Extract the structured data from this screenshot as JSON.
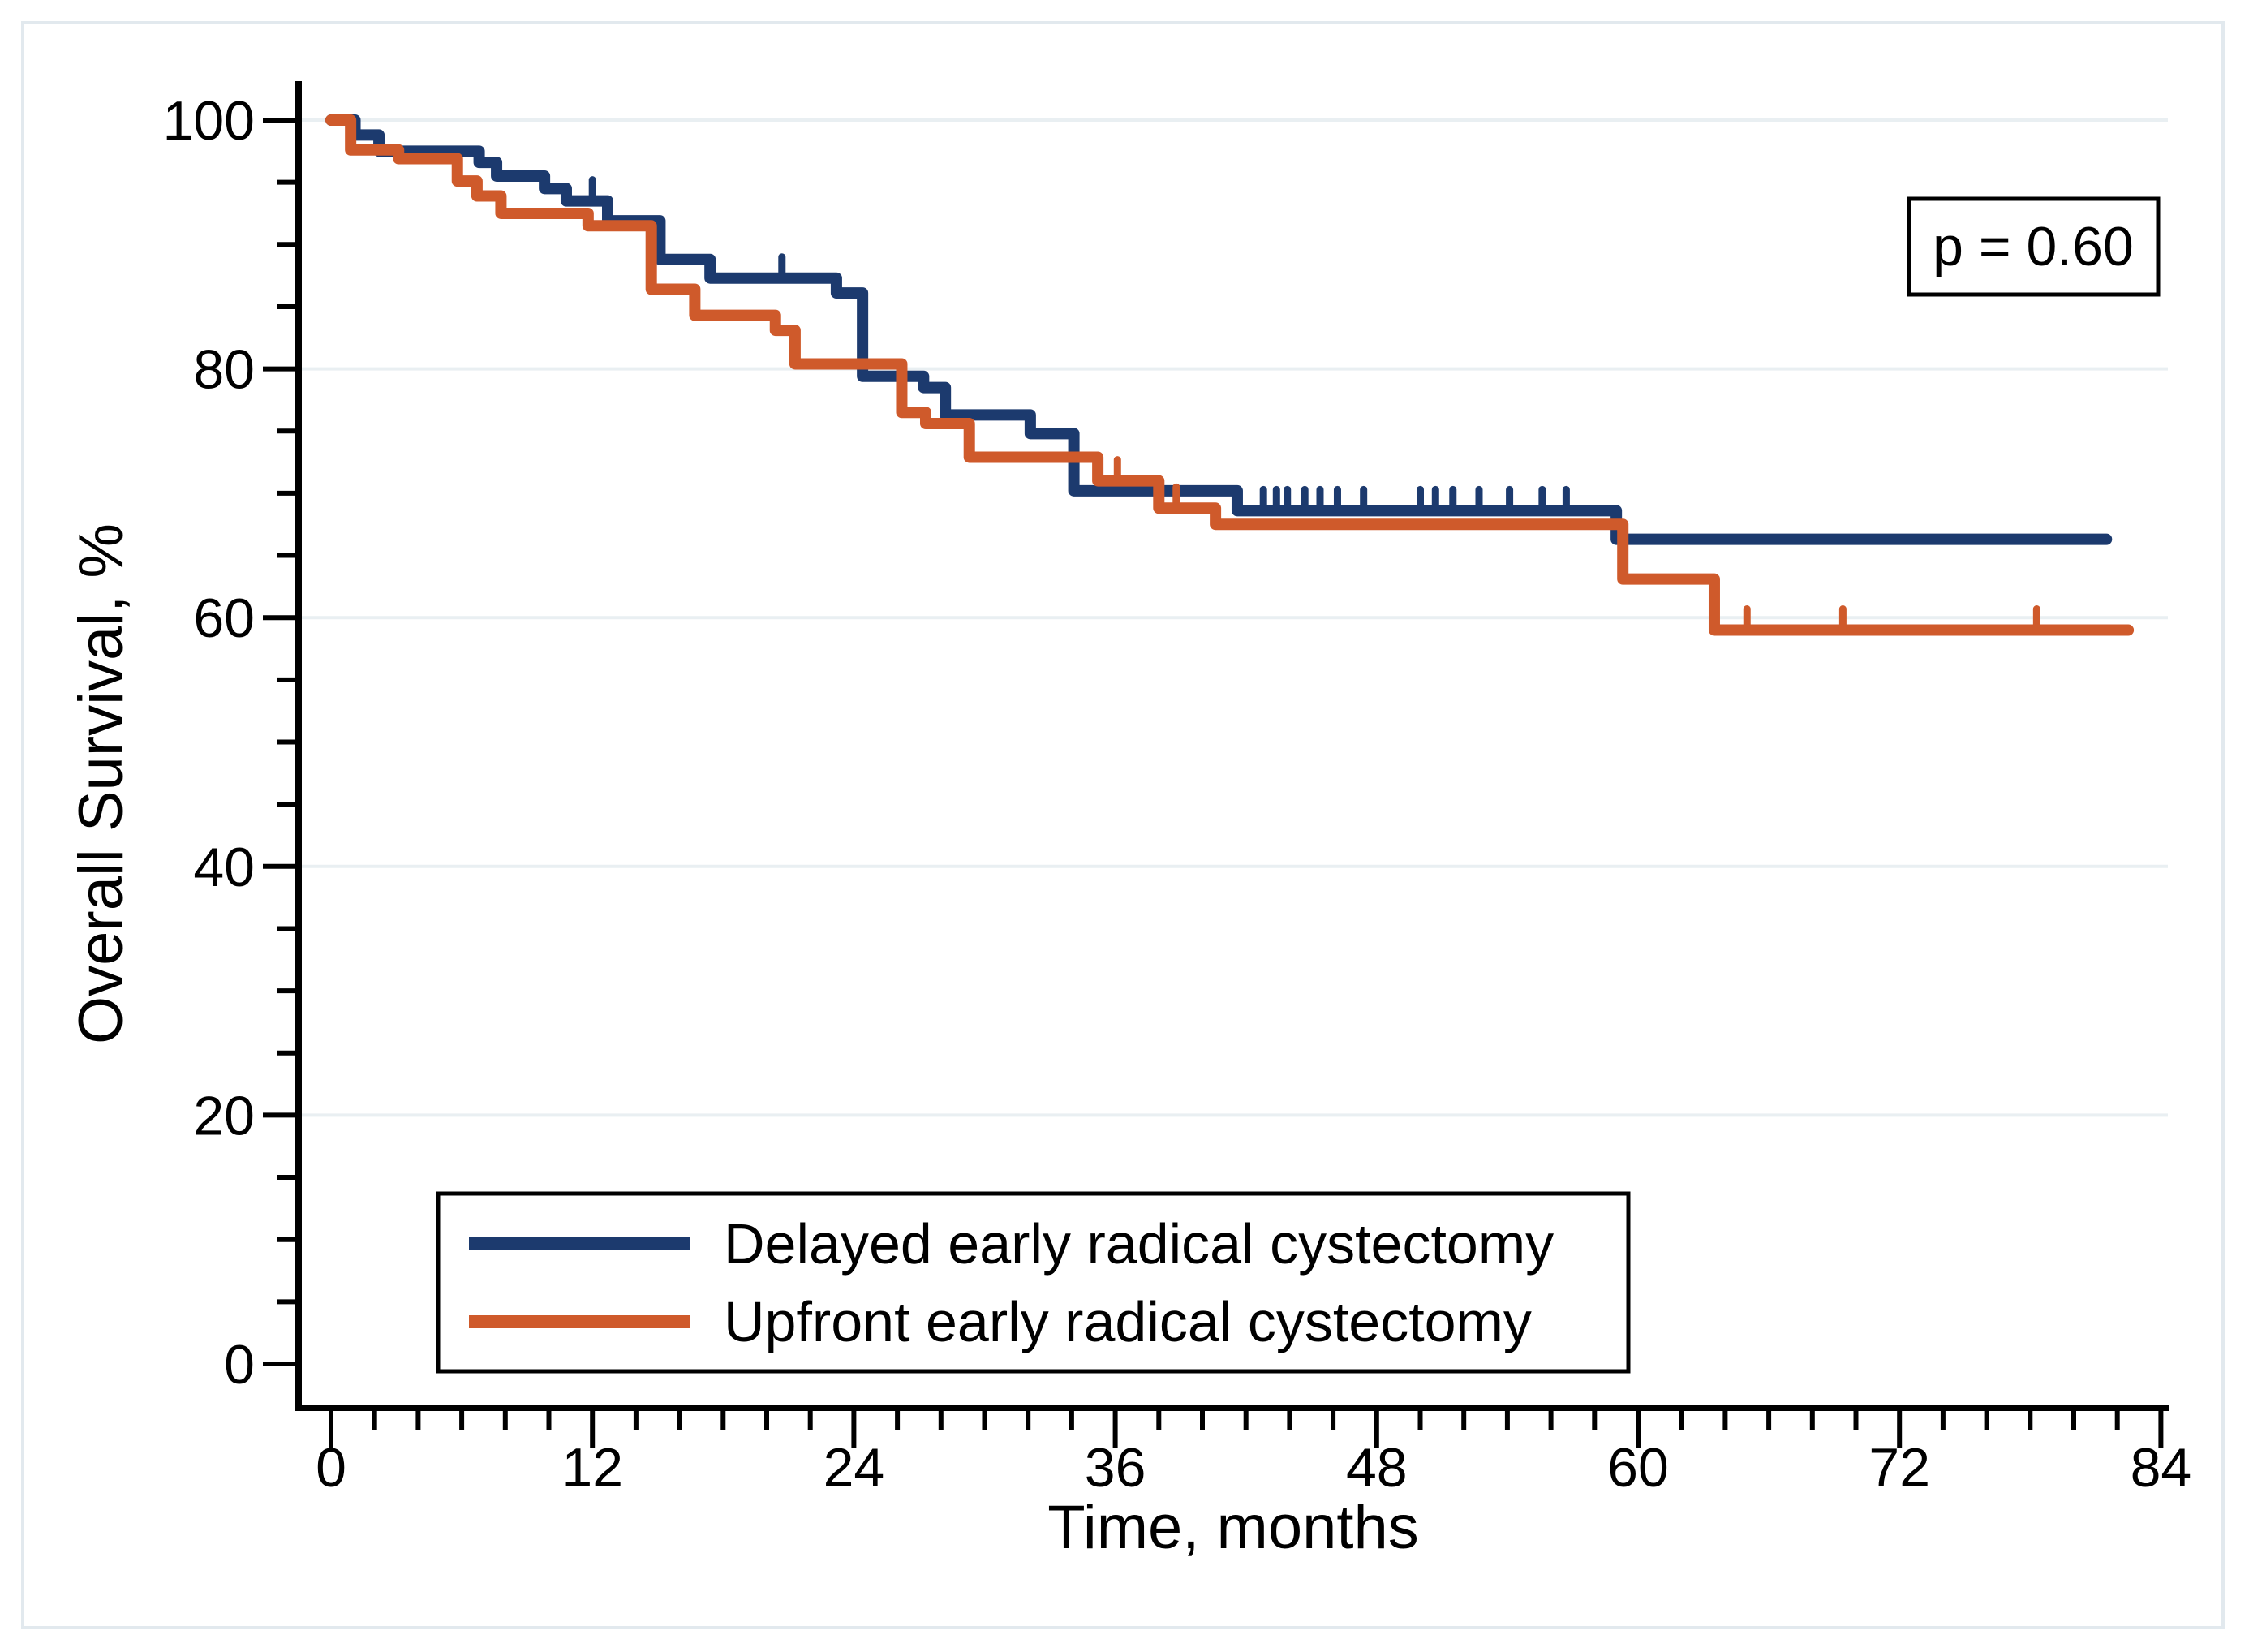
{
  "figure": {
    "background": "#ffffff",
    "frame_color": "#e2e9ee",
    "axis_color": "#000000",
    "grid_color": "#e9eff2",
    "p_annotation": "p = 0.60"
  },
  "chart_data": {
    "type": "line",
    "subtype": "kaplan-meier-step",
    "title": "",
    "xlabel": "Time, months",
    "ylabel": "Overall Survival, %",
    "xlim": [
      0,
      84
    ],
    "ylim": [
      0,
      100
    ],
    "x_ticks": [
      0,
      12,
      24,
      36,
      48,
      60,
      72,
      84
    ],
    "x_minor_step": 2,
    "y_ticks": [
      0,
      20,
      40,
      60,
      80,
      100
    ],
    "y_minor_step": 5,
    "grid": "horizontal-majors-only",
    "legend_position": "inside-bottom-left",
    "annotation": "p = 0.60",
    "series": [
      {
        "name": "Delayed early radical cystectomy",
        "color": "#1c3a6e",
        "end_time": 81.5,
        "steps": [
          [
            0,
            100
          ],
          [
            1.1,
            98.8
          ],
          [
            2.2,
            97.5
          ],
          [
            6.8,
            96.6
          ],
          [
            7.6,
            95.5
          ],
          [
            9.8,
            94.5
          ],
          [
            10.8,
            93.5
          ],
          [
            12.7,
            91.9
          ],
          [
            15.1,
            88.8
          ],
          [
            17.4,
            87.3
          ],
          [
            23.2,
            86.1
          ],
          [
            24.4,
            79.4
          ],
          [
            27.2,
            78.5
          ],
          [
            28.2,
            76.3
          ],
          [
            32.1,
            74.8
          ],
          [
            34.1,
            70.2
          ],
          [
            41.6,
            68.6
          ],
          [
            59.0,
            66.3
          ]
        ],
        "censor_times": [
          12.0,
          20.7,
          42.8,
          43.4,
          43.9,
          44.7,
          45.4,
          46.2,
          47.4,
          50.0,
          50.7,
          51.5,
          52.7,
          54.1,
          55.6,
          56.7
        ]
      },
      {
        "name": "Upfront early radical cystectomy",
        "color": "#cf5a2b",
        "end_time": 82.5,
        "steps": [
          [
            0,
            100
          ],
          [
            0.9,
            97.6
          ],
          [
            3.1,
            96.9
          ],
          [
            5.8,
            95.1
          ],
          [
            6.7,
            93.9
          ],
          [
            7.8,
            92.5
          ],
          [
            11.8,
            91.5
          ],
          [
            14.7,
            86.4
          ],
          [
            16.7,
            84.3
          ],
          [
            20.4,
            83.1
          ],
          [
            21.3,
            80.4
          ],
          [
            26.2,
            76.5
          ],
          [
            27.3,
            75.6
          ],
          [
            29.3,
            72.9
          ],
          [
            35.2,
            71.0
          ],
          [
            38.0,
            68.8
          ],
          [
            40.6,
            67.5
          ],
          [
            59.3,
            63.1
          ],
          [
            63.5,
            59.0
          ]
        ],
        "censor_times": [
          36.1,
          38.8,
          65.0,
          69.4,
          78.3
        ]
      }
    ]
  }
}
